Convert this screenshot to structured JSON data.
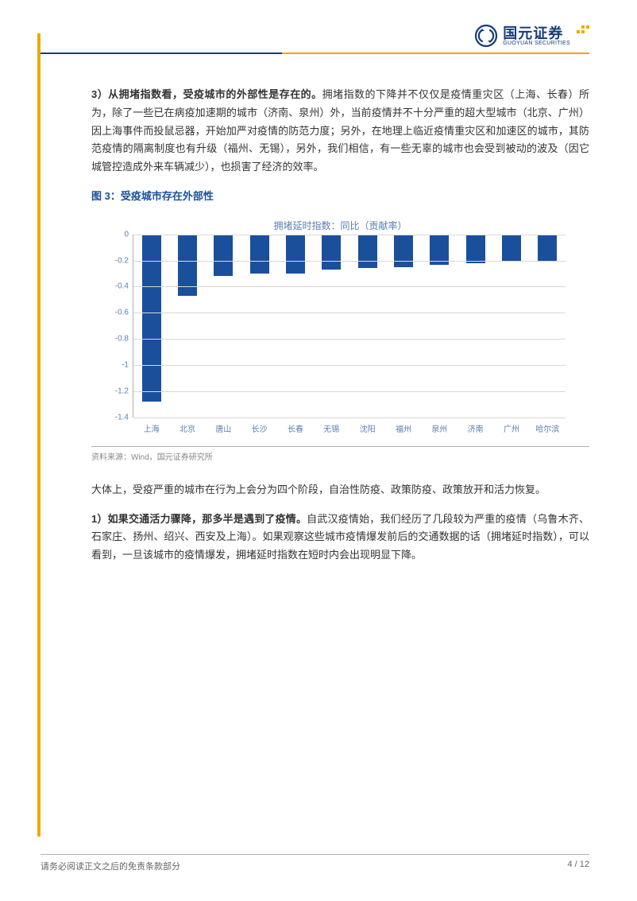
{
  "header": {
    "company_cn": "国元证券",
    "company_en": "GUOYUAN SECURITIES"
  },
  "body": {
    "p1_bold": "3）从拥堵指数看，受疫城市的外部性是存在的。",
    "p1_rest": "拥堵指数的下降并不仅仅是疫情重灾区（上海、长春）所为，除了一些已在病疫加速期的城市（济南、泉州）外，当前疫情并不十分严重的超大型城市（北京、广州）因上海事件而投鼠忌器，开始加严对疫情的防范力度；另外，在地理上临近疫情重灾区和加速区的城市，其防范疫情的隔离制度也有升级（福州、无锡），另外，我们相信，有一些无辜的城市也会受到被动的波及（因它城管控造成外来车辆减少），也损害了经济的效率。",
    "fig_caption": "图 3：受疫城市存在外部性",
    "source": "资料来源：Wind，国元证券研究所",
    "p2": "大体上，受疫严重的城市在行为上会分为四个阶段，自治性防疫、政策防疫、政策放开和活力恢复。",
    "p3_bold": "1）如果交通活力骤降，那多半是遇到了疫情。",
    "p3_rest": "自武汉疫情始，我们经历了几段较为严重的疫情（乌鲁木齐、石家庄、扬州、绍兴、西安及上海）。如果观察这些城市疫情爆发前后的交通数据的话（拥堵延时指数），可以看到，一旦该城市的疫情爆发，拥堵延时指数在短时内会出现明显下降。"
  },
  "chart": {
    "type": "bar",
    "title": "拥堵延时指数：同比（贡献率）",
    "categories": [
      "上海",
      "北京",
      "唐山",
      "长沙",
      "长春",
      "无锡",
      "沈阳",
      "福州",
      "泉州",
      "济南",
      "广州",
      "哈尔滨"
    ],
    "values": [
      -1.28,
      -0.47,
      -0.32,
      -0.3,
      -0.3,
      -0.27,
      -0.26,
      -0.25,
      -0.23,
      -0.22,
      -0.21,
      -0.21
    ],
    "bar_color": "#1a4f9c",
    "ylim": [
      -1.4,
      0
    ],
    "ytick_step": 0.2,
    "yticks": [
      "0",
      "-0.2",
      "-0.4",
      "-0.6",
      "-0.8",
      "-1",
      "-1.2",
      "-1.4"
    ],
    "grid_color": "#d9d9d9",
    "label_color": "#5b7fb0",
    "label_fontsize": 10,
    "title_fontsize": 12,
    "background_color": "#ffffff"
  },
  "footer": {
    "disclaimer": "请务必阅读正文之后的免责条款部分",
    "page": "4 / 12"
  },
  "colors": {
    "brand_blue": "#163d7a",
    "brand_yellow": "#f0a800",
    "chart_blue": "#1a4f9c"
  }
}
